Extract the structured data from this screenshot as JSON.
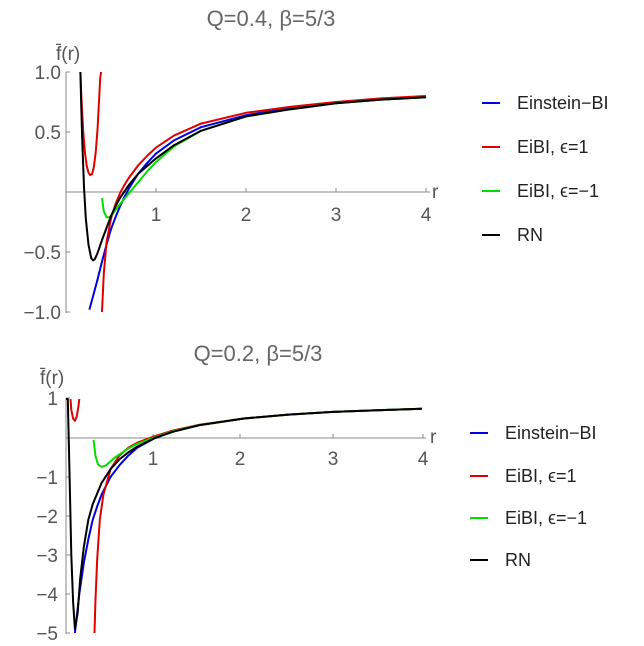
{
  "chart_data": [
    {
      "type": "line",
      "title": "Q=0.4, β=5/3",
      "ylabel": "f̄(r)",
      "xlabel": "r",
      "xlim": [
        0,
        4.1
      ],
      "ylim": [
        -1.0,
        1.0
      ],
      "xticks": [
        "1",
        "2",
        "3",
        "4"
      ],
      "yticks": [
        "1.0",
        "0.5",
        "−0.5",
        "−1.0"
      ],
      "legend_position": "right",
      "series": [
        {
          "name": "Einstein−BI",
          "color": "#0000e0",
          "x": [
            0.26,
            0.3,
            0.35,
            0.4,
            0.45,
            0.5,
            0.55,
            0.6,
            0.65,
            0.7,
            0.8,
            0.9,
            1.0,
            1.2,
            1.5,
            2.0,
            2.5,
            3.0,
            3.5,
            4.0
          ],
          "y": [
            -0.98,
            -0.87,
            -0.73,
            -0.58,
            -0.44,
            -0.31,
            -0.21,
            -0.12,
            -0.04,
            0.03,
            0.15,
            0.24,
            0.32,
            0.43,
            0.54,
            0.64,
            0.7,
            0.74,
            0.77,
            0.79
          ]
        },
        {
          "name": "EiBI, ϵ=1",
          "color": "#e00000",
          "x": [
            0.16,
            0.17,
            0.19,
            0.21,
            0.23,
            0.25,
            0.27,
            0.29,
            0.31,
            0.33,
            0.35,
            0.37,
            0.38,
            0.39
          ],
          "y": [
            1.0,
            0.8,
            0.52,
            0.33,
            0.22,
            0.16,
            0.14,
            0.15,
            0.21,
            0.33,
            0.52,
            0.8,
            0.95,
            1.0
          ]
        },
        {
          "name": "EiBI, ϵ=1",
          "color": "#e00000",
          "x": [
            0.4,
            0.42,
            0.45,
            0.5,
            0.55,
            0.6,
            0.65,
            0.7,
            0.8,
            0.9,
            1.0,
            1.2,
            1.5,
            2.0,
            2.5,
            3.0,
            3.5,
            4.0
          ],
          "y": [
            -1.0,
            -0.68,
            -0.42,
            -0.22,
            -0.1,
            -0.01,
            0.06,
            0.12,
            0.22,
            0.3,
            0.37,
            0.47,
            0.57,
            0.66,
            0.71,
            0.75,
            0.78,
            0.8
          ]
        },
        {
          "name": "EiBI, ϵ=−1",
          "color": "#00dd00",
          "x": [
            0.4,
            0.42,
            0.45,
            0.48,
            0.5,
            0.55,
            0.6,
            0.7,
            0.8,
            0.9,
            1.0,
            1.2,
            1.5,
            2.0,
            2.5,
            3.0,
            3.5,
            4.0
          ],
          "y": [
            -0.05,
            -0.16,
            -0.21,
            -0.21,
            -0.2,
            -0.15,
            -0.1,
            -0.01,
            0.08,
            0.17,
            0.25,
            0.38,
            0.51,
            0.63,
            0.69,
            0.74,
            0.77,
            0.79
          ]
        },
        {
          "name": "RN",
          "color": "#000000",
          "x": [
            0.16,
            0.17,
            0.18,
            0.2,
            0.22,
            0.25,
            0.28,
            0.3,
            0.32,
            0.35,
            0.4,
            0.45,
            0.5,
            0.55,
            0.6,
            0.7,
            0.8,
            1.0,
            1.2,
            1.5,
            2.0,
            2.5,
            3.0,
            3.5,
            4.0
          ],
          "y": [
            1.0,
            0.7,
            0.44,
            0.04,
            -0.22,
            -0.44,
            -0.55,
            -0.57,
            -0.56,
            -0.51,
            -0.4,
            -0.3,
            -0.2,
            -0.12,
            -0.05,
            0.06,
            0.15,
            0.28,
            0.39,
            0.51,
            0.63,
            0.69,
            0.74,
            0.77,
            0.79
          ]
        }
      ]
    },
    {
      "type": "line",
      "title": "Q=0.2, β=5/3",
      "ylabel": "f̄(r)",
      "xlabel": "r",
      "xlim": [
        0,
        4.1
      ],
      "ylim": [
        -5,
        1
      ],
      "xticks": [
        "1",
        "2",
        "3",
        "4"
      ],
      "yticks": [
        "1",
        "−1",
        "−2",
        "−3",
        "−4",
        "−5"
      ],
      "legend_position": "right",
      "series": [
        {
          "name": "Einstein−BI",
          "color": "#0000e0",
          "x": [
            0.1,
            0.12,
            0.15,
            0.2,
            0.25,
            0.3,
            0.35,
            0.4,
            0.5,
            0.6,
            0.7,
            0.8,
            1.0,
            1.2,
            1.5,
            2.0,
            2.5,
            3.0,
            3.5,
            4.0
          ],
          "y": [
            -5.0,
            -4.6,
            -4.0,
            -3.2,
            -2.6,
            -2.1,
            -1.75,
            -1.45,
            -1.0,
            -0.7,
            -0.45,
            -0.25,
            0.0,
            0.17,
            0.33,
            0.5,
            0.6,
            0.67,
            0.71,
            0.75
          ]
        },
        {
          "name": "EiBI, ϵ=1",
          "color": "#e00000",
          "x": [
            0.05,
            0.06,
            0.08,
            0.1,
            0.12,
            0.14,
            0.15
          ],
          "y": [
            1.0,
            0.72,
            0.5,
            0.44,
            0.55,
            0.82,
            1.0
          ]
        },
        {
          "name": "EiBI, ϵ=1",
          "color": "#e00000",
          "x": [
            0.32,
            0.33,
            0.35,
            0.38,
            0.42,
            0.5,
            0.6,
            0.7,
            0.8,
            1.0,
            1.2,
            1.5,
            2.0,
            2.5,
            3.0,
            3.5,
            4.0
          ],
          "y": [
            -5.0,
            -4.2,
            -3.1,
            -2.1,
            -1.45,
            -0.8,
            -0.45,
            -0.25,
            -0.12,
            0.05,
            0.19,
            0.34,
            0.5,
            0.6,
            0.67,
            0.71,
            0.75
          ]
        },
        {
          "name": "EiBI, ϵ=−1",
          "color": "#00dd00",
          "x": [
            0.31,
            0.33,
            0.36,
            0.4,
            0.45,
            0.5,
            0.55,
            0.6,
            0.7,
            0.8,
            1.0,
            1.2,
            1.5,
            2.0,
            2.5,
            3.0,
            3.5,
            4.0
          ],
          "y": [
            -0.05,
            -0.45,
            -0.68,
            -0.74,
            -0.7,
            -0.6,
            -0.5,
            -0.42,
            -0.27,
            -0.15,
            0.02,
            0.17,
            0.33,
            0.5,
            0.6,
            0.67,
            0.71,
            0.75
          ]
        },
        {
          "name": "RN",
          "color": "#000000",
          "x": [
            0.0,
            0.02,
            0.04,
            0.06,
            0.08,
            0.1,
            0.13,
            0.16,
            0.2,
            0.25,
            0.3,
            0.4,
            0.5,
            0.6,
            0.7,
            0.8,
            1.0,
            1.2,
            1.5,
            2.0,
            2.5,
            3.0,
            3.5,
            4.0
          ],
          "y": [
            1.0,
            1.0,
            -1.0,
            -3.0,
            -4.2,
            -4.9,
            -4.5,
            -3.6,
            -2.8,
            -2.1,
            -1.7,
            -1.15,
            -0.8,
            -0.55,
            -0.37,
            -0.22,
            0.0,
            0.16,
            0.33,
            0.5,
            0.6,
            0.67,
            0.71,
            0.75
          ]
        }
      ]
    }
  ],
  "legend": [
    {
      "label": "Einstein−BI",
      "color": "#0000e0"
    },
    {
      "label": "EiBI, ϵ=1",
      "color": "#e00000"
    },
    {
      "label": "EiBI, ϵ=−1",
      "color": "#00dd00"
    },
    {
      "label": "RN",
      "color": "#000000"
    }
  ]
}
